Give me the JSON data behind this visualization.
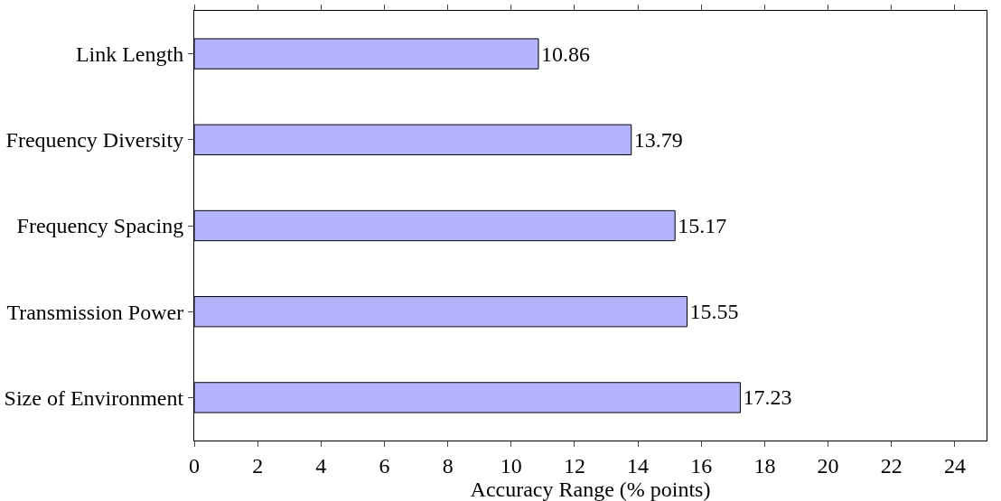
{
  "chart_data": {
    "type": "bar",
    "orientation": "horizontal",
    "xlabel": "Accuracy Range (% points)",
    "categories": [
      "Link Length",
      "Frequency Diversity",
      "Frequency Spacing",
      "Transmission Power",
      "Size of Environment"
    ],
    "values": [
      10.86,
      13.79,
      15.17,
      15.55,
      17.23
    ],
    "color": "#b3b3ff",
    "xlim": [
      0,
      25
    ],
    "xticks": [
      0,
      2,
      4,
      6,
      8,
      10,
      12,
      14,
      16,
      18,
      20,
      22,
      24
    ],
    "data_labels": true
  }
}
